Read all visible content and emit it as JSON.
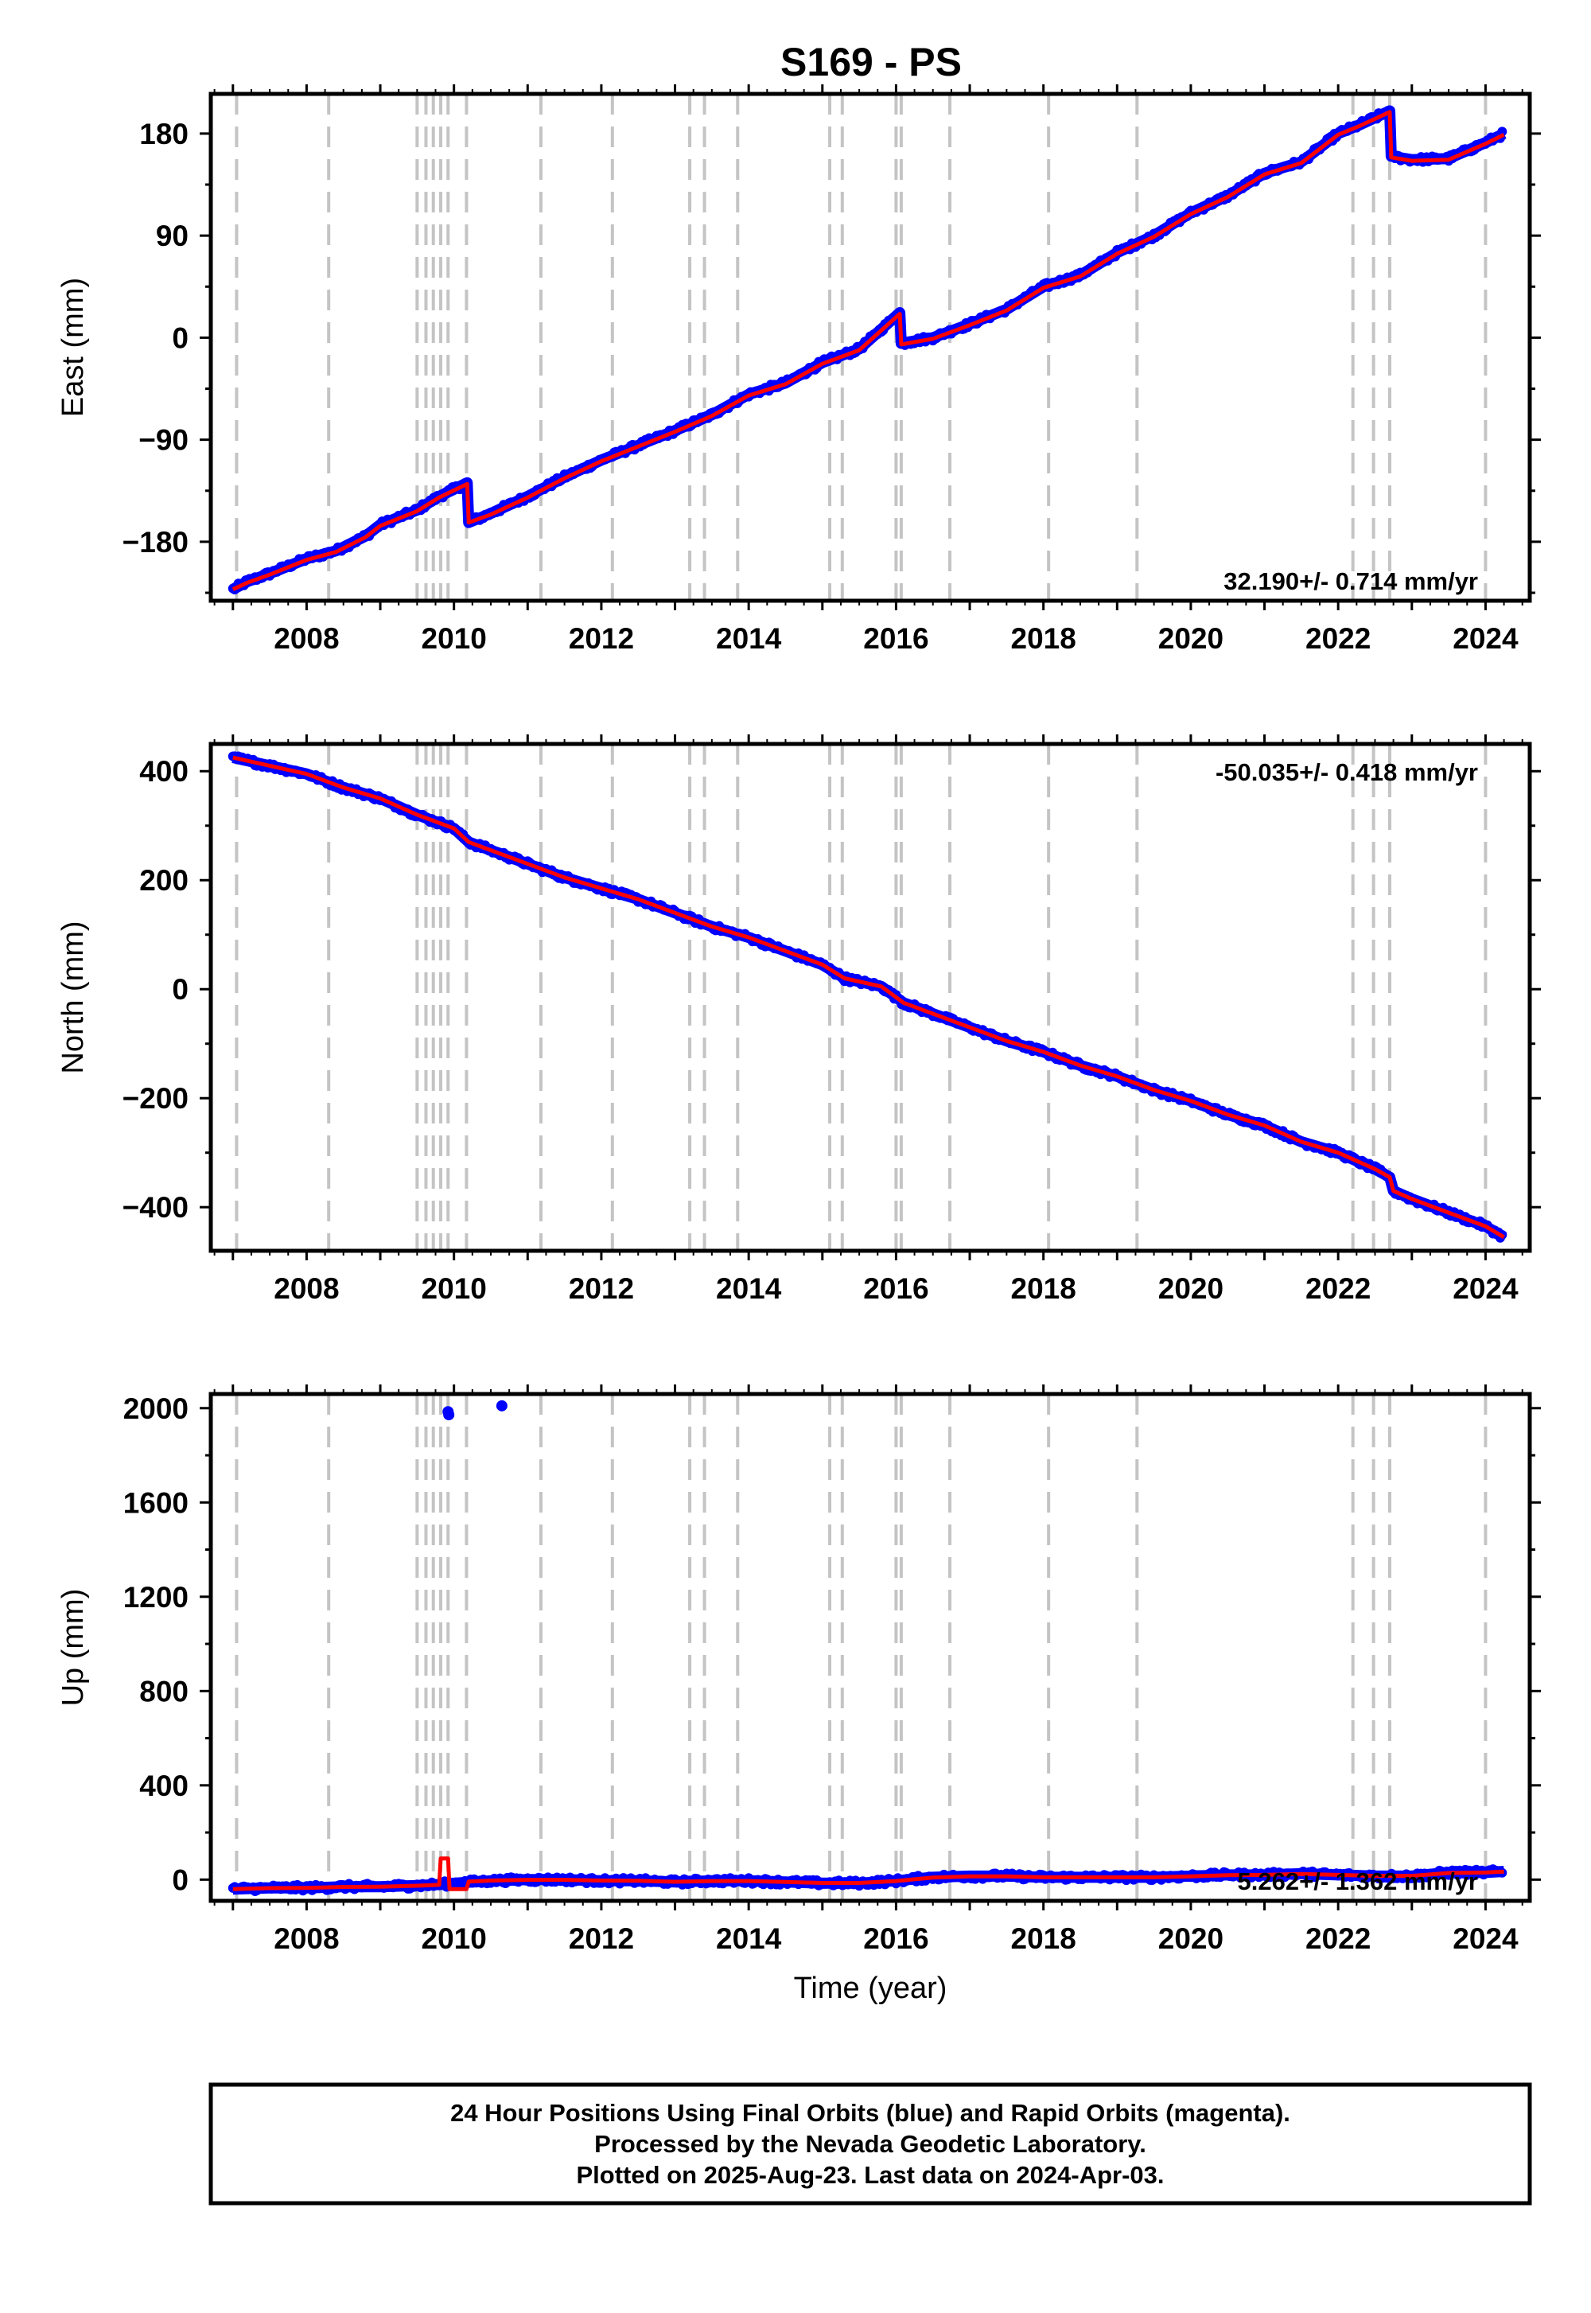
{
  "page": {
    "title": "S169 - PS",
    "footer": [
      "24 Hour Positions Using Final Orbits (blue) and Rapid Orbits (magenta).",
      "Processed by the Nevada Geodetic Laboratory.",
      "Plotted on 2025-Aug-23. Last data on 2024-Apr-03."
    ]
  },
  "colors": {
    "final_orbits": "#0000ff",
    "model": "#ff0000",
    "event_lines": "#c4c4c4"
  },
  "chart_data": [
    {
      "type": "scatter",
      "ylabel": "East (mm)",
      "xlabel": "",
      "xlim": [
        2006.7,
        2024.6
      ],
      "ylim": [
        -232,
        215
      ],
      "xticks": [
        2008,
        2010,
        2012,
        2014,
        2016,
        2018,
        2020,
        2022,
        2024
      ],
      "yticks": [
        -180,
        -90,
        0,
        90,
        180
      ],
      "rate_text": "32.190+/- 0.714 mm/yr",
      "rate_position": "bottom-right",
      "events": [
        2007.05,
        2008.3,
        2009.5,
        2009.62,
        2009.72,
        2009.82,
        2009.92,
        2010.17,
        2011.18,
        2012.15,
        2013.2,
        2013.4,
        2013.85,
        2015.1,
        2015.27,
        2016.0,
        2016.07,
        2016.73,
        2018.07,
        2019.27,
        2022.2,
        2022.48,
        2022.7,
        2024.0
      ],
      "series": [
        {
          "name": "Final Orbits",
          "x": [
            2007.0,
            2007.2,
            2007.5,
            2008.0,
            2008.4,
            2008.8,
            2009.0,
            2009.5,
            2009.8,
            2010.18,
            2010.2,
            2010.5,
            2011.0,
            2011.5,
            2012.0,
            2012.5,
            2013.0,
            2013.5,
            2014.0,
            2014.5,
            2015.0,
            2015.5,
            2016.05,
            2016.07,
            2016.5,
            2017.0,
            2017.5,
            2018.0,
            2018.5,
            2019.0,
            2019.5,
            2020.0,
            2020.5,
            2021.0,
            2021.5,
            2022.0,
            2022.3,
            2022.7,
            2022.72,
            2023.0,
            2023.5,
            2024.0,
            2024.25
          ],
          "y": [
            -222,
            -215,
            -208,
            -195,
            -188,
            -175,
            -165,
            -152,
            -140,
            -128,
            -163,
            -155,
            -140,
            -123,
            -108,
            -95,
            -82,
            -68,
            -50,
            -40,
            -22,
            -10,
            22,
            -5,
            0,
            12,
            25,
            45,
            55,
            75,
            90,
            110,
            125,
            145,
            155,
            180,
            188,
            200,
            160,
            157,
            158,
            172,
            180
          ]
        },
        {
          "name": "",
          "x": [
            2007.0,
            2007.2,
            2007.5,
            2008.0,
            2008.4,
            2008.8,
            2009.0,
            2009.5,
            2009.8,
            2010.18,
            2010.2,
            2010.5,
            2011.0,
            2011.5,
            2012.0,
            2012.5,
            2013.0,
            2013.5,
            2014.0,
            2014.5,
            2015.0,
            2015.5,
            2016.05,
            2016.07,
            2016.5,
            2017.0,
            2017.5,
            2018.0,
            2018.5,
            2019.0,
            2019.5,
            2020.0,
            2020.5,
            2021.0,
            2021.5,
            2022.0,
            2022.3,
            2022.7,
            2022.72,
            2023.0,
            2023.5,
            2024.0,
            2024.25
          ],
          "y": [
            -222,
            -216,
            -209,
            -196,
            -189,
            -176,
            -166,
            -153,
            -141,
            -129,
            -163,
            -156,
            -141,
            -124,
            -109,
            -96,
            -83,
            -69,
            -51,
            -41,
            -23,
            -11,
            21,
            -6,
            -1,
            11,
            24,
            44,
            54,
            74,
            89,
            109,
            124,
            144,
            154,
            179,
            187,
            199,
            159,
            156,
            157,
            171,
            179
          ]
        }
      ]
    },
    {
      "type": "scatter",
      "ylabel": "North (mm)",
      "xlabel": "",
      "xlim": [
        2006.7,
        2024.6
      ],
      "ylim": [
        -480,
        450
      ],
      "xticks": [
        2008,
        2010,
        2012,
        2014,
        2016,
        2018,
        2020,
        2022,
        2024
      ],
      "yticks": [
        -400,
        -200,
        0,
        200,
        400
      ],
      "rate_text": "-50.035+/- 0.418 mm/yr",
      "rate_position": "top-right",
      "events": [
        2007.05,
        2008.3,
        2009.5,
        2009.62,
        2009.72,
        2009.82,
        2009.92,
        2010.17,
        2011.18,
        2012.15,
        2013.2,
        2013.4,
        2013.85,
        2015.1,
        2015.27,
        2016.0,
        2016.07,
        2016.73,
        2018.07,
        2019.27,
        2022.2,
        2022.48,
        2022.7,
        2024.0
      ],
      "series": [
        {
          "name": "Final Orbits",
          "x": [
            2007.0,
            2007.5,
            2008.0,
            2008.5,
            2009.0,
            2009.5,
            2010.0,
            2010.2,
            2010.5,
            2011.0,
            2011.5,
            2012.0,
            2012.5,
            2013.0,
            2013.5,
            2014.0,
            2014.5,
            2015.0,
            2015.3,
            2015.8,
            2016.1,
            2016.5,
            2017.0,
            2017.5,
            2018.0,
            2018.5,
            2019.0,
            2019.5,
            2020.0,
            2020.5,
            2021.0,
            2021.5,
            2022.0,
            2022.5,
            2022.7,
            2022.75,
            2023.0,
            2023.5,
            2024.0,
            2024.25
          ],
          "y": [
            425,
            410,
            395,
            370,
            350,
            320,
            295,
            270,
            255,
            230,
            205,
            185,
            165,
            140,
            115,
            95,
            70,
            45,
            20,
            5,
            -25,
            -45,
            -70,
            -95,
            -115,
            -140,
            -160,
            -185,
            -205,
            -230,
            -250,
            -280,
            -300,
            -330,
            -345,
            -370,
            -385,
            -410,
            -435,
            -455
          ]
        },
        {
          "name": "",
          "x": [
            2007.0,
            2007.5,
            2008.0,
            2008.5,
            2009.0,
            2009.5,
            2010.0,
            2010.2,
            2010.5,
            2011.0,
            2011.5,
            2012.0,
            2012.5,
            2013.0,
            2013.5,
            2014.0,
            2014.5,
            2015.0,
            2015.3,
            2015.8,
            2016.1,
            2016.5,
            2017.0,
            2017.5,
            2018.0,
            2018.5,
            2019.0,
            2019.5,
            2020.0,
            2020.5,
            2021.0,
            2021.5,
            2022.0,
            2022.5,
            2022.7,
            2022.75,
            2023.0,
            2023.5,
            2024.0,
            2024.25
          ],
          "y": [
            425,
            410,
            395,
            370,
            350,
            320,
            295,
            270,
            255,
            230,
            205,
            185,
            165,
            140,
            115,
            95,
            70,
            45,
            20,
            5,
            -25,
            -45,
            -70,
            -95,
            -115,
            -140,
            -160,
            -185,
            -205,
            -230,
            -250,
            -280,
            -300,
            -330,
            -345,
            -370,
            -385,
            -410,
            -435,
            -455
          ]
        }
      ]
    },
    {
      "type": "scatter",
      "ylabel": "Up (mm)",
      "xlabel": "Time (year)",
      "xlim": [
        2006.7,
        2024.6
      ],
      "ylim": [
        -90,
        2060
      ],
      "xticks": [
        2008,
        2010,
        2012,
        2014,
        2016,
        2018,
        2020,
        2022,
        2024
      ],
      "yticks": [
        0,
        400,
        800,
        1200,
        1600,
        2000
      ],
      "rate_text": "5.262+/- 1.362 mm/yr",
      "rate_position": "bottom-right",
      "events": [
        2007.05,
        2008.3,
        2009.5,
        2009.62,
        2009.72,
        2009.82,
        2009.92,
        2010.17,
        2011.18,
        2012.15,
        2013.2,
        2013.4,
        2013.85,
        2015.1,
        2015.27,
        2016.0,
        2016.07,
        2016.73,
        2018.07,
        2019.27,
        2022.2,
        2022.48,
        2022.7,
        2024.0
      ],
      "series": [
        {
          "name": "Final Orbits",
          "x": [
            2007.0,
            2007.5,
            2008.0,
            2008.5,
            2009.0,
            2009.5,
            2009.85,
            2010.0,
            2010.5,
            2011.0,
            2011.5,
            2012.0,
            2012.5,
            2013.0,
            2013.5,
            2014.0,
            2014.5,
            2015.0,
            2015.5,
            2016.0,
            2016.5,
            2017.0,
            2017.5,
            2018.0,
            2018.5,
            2019.0,
            2019.5,
            2020.0,
            2020.5,
            2021.0,
            2021.5,
            2022.0,
            2022.5,
            2023.0,
            2023.5,
            2024.0,
            2024.25
          ],
          "y": [
            -40,
            -35,
            -35,
            -30,
            -30,
            -25,
            -20,
            -15,
            -5,
            0,
            0,
            -5,
            -5,
            -10,
            -5,
            -5,
            -10,
            -15,
            -15,
            -5,
            10,
            15,
            15,
            10,
            10,
            10,
            10,
            15,
            20,
            20,
            25,
            20,
            15,
            15,
            30,
            30,
            35
          ],
          "outliers": [
            {
              "x": 2009.92,
              "y": 1985
            },
            {
              "x": 2009.93,
              "y": 1972
            },
            {
              "x": 2010.65,
              "y": 2010
            }
          ]
        },
        {
          "name": "",
          "x": [
            2007.0,
            2007.5,
            2008.0,
            2008.5,
            2009.0,
            2009.5,
            2009.8,
            2009.82,
            2009.92,
            2009.94,
            2010.17,
            2010.2,
            2010.5,
            2011.0,
            2011.5,
            2012.0,
            2012.5,
            2013.0,
            2013.5,
            2014.0,
            2014.5,
            2015.0,
            2015.5,
            2016.0,
            2016.5,
            2017.0,
            2017.5,
            2018.0,
            2018.5,
            2019.0,
            2019.5,
            2020.0,
            2020.5,
            2021.0,
            2021.5,
            2022.0,
            2022.5,
            2023.0,
            2023.5,
            2024.0,
            2024.25
          ],
          "y": [
            -40,
            -36,
            -35,
            -31,
            -30,
            -26,
            -22,
            90,
            90,
            -40,
            -40,
            -8,
            -4,
            -1,
            -1,
            -4,
            -5,
            -9,
            -6,
            -6,
            -10,
            -14,
            -14,
            -6,
            9,
            14,
            14,
            10,
            10,
            10,
            10,
            14,
            19,
            20,
            24,
            20,
            16,
            16,
            28,
            30,
            34
          ]
        }
      ]
    }
  ]
}
